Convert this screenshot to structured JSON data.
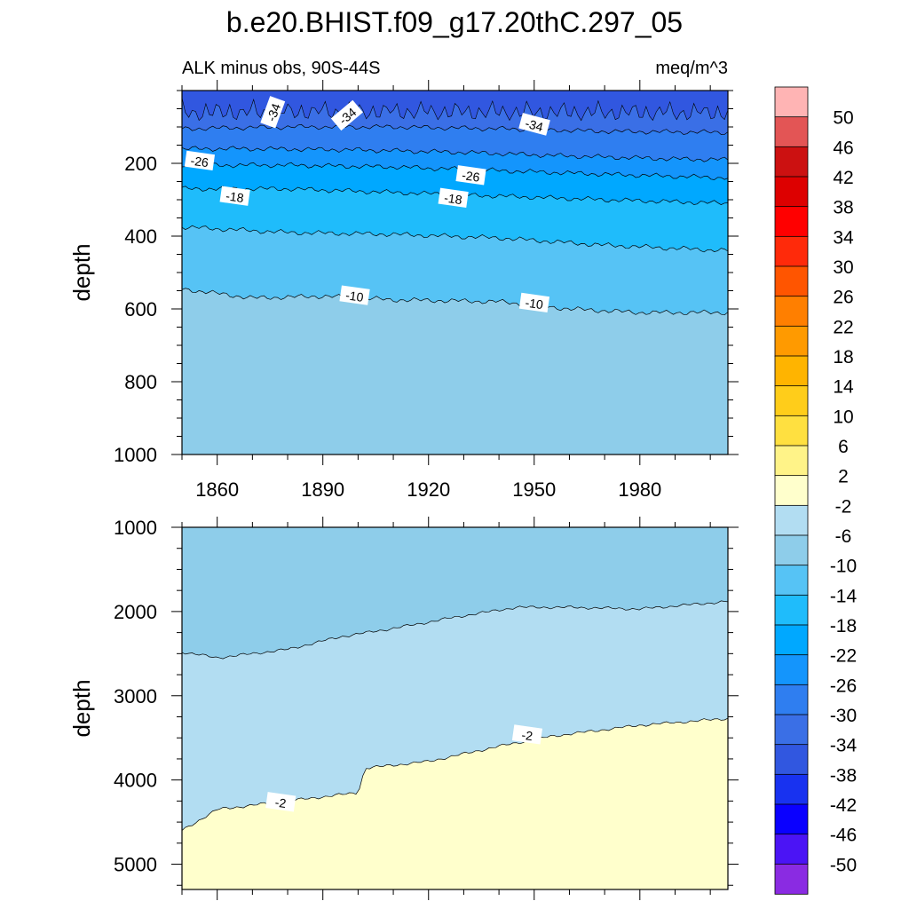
{
  "title": "b.e20.BHIST.f09_g17.20thC.297_05",
  "subtitle_left": "ALK minus obs, 90S-44S",
  "subtitle_right": "meq/m^3",
  "chart_data": [
    {
      "type": "contour",
      "panel": "upper",
      "ylabel": "depth",
      "xlim": [
        1850,
        2005
      ],
      "ylim": [
        1000,
        0
      ],
      "y_reversed": true,
      "x_ticks": [
        1860,
        1890,
        1920,
        1950,
        1980
      ],
      "x_tick_labels": [
        "1860",
        "1890",
        "1920",
        "1950",
        "1980"
      ],
      "y_ticks": [
        200,
        400,
        600,
        800,
        1000
      ],
      "y_tick_labels": [
        "200",
        "400",
        "600",
        "800",
        "1000"
      ],
      "contours": [
        {
          "level": -34,
          "depth": [
            [
              1850,
              20
            ],
            [
              1870,
              18
            ],
            [
              1890,
              17
            ],
            [
              1910,
              17
            ],
            [
              1930,
              18
            ],
            [
              1960,
              19
            ],
            [
              1990,
              20
            ],
            [
              2005,
              20
            ]
          ],
          "label_text": "-34",
          "label_positions": [
            [
              1876,
              60
            ],
            [
              1897,
              70
            ],
            [
              1950,
              95
            ]
          ]
        },
        {
          "level": -30,
          "depth": [
            [
              1850,
              105
            ],
            [
              1880,
              100
            ],
            [
              1910,
              100
            ],
            [
              1940,
              105
            ],
            [
              1970,
              112
            ],
            [
              2005,
              115
            ]
          ],
          "label_text": "",
          "label_positions": []
        },
        {
          "level": -26,
          "depth": [
            [
              1850,
              160
            ],
            [
              1870,
              160
            ],
            [
              1900,
              163
            ],
            [
              1930,
              170
            ],
            [
              1960,
              180
            ],
            [
              1990,
              188
            ],
            [
              2005,
              190
            ]
          ],
          "label_text": "-26",
          "label_positions": [
            [
              1855,
              195
            ],
            [
              1932,
              235
            ]
          ]
        },
        {
          "level": -22,
          "depth": [
            [
              1850,
              205
            ],
            [
              1880,
              205
            ],
            [
              1910,
              210
            ],
            [
              1940,
              220
            ],
            [
              1970,
              230
            ],
            [
              2005,
              240
            ]
          ],
          "label_text": "",
          "label_positions": []
        },
        {
          "level": -18,
          "depth": [
            [
              1850,
              270
            ],
            [
              1880,
              270
            ],
            [
              1910,
              280
            ],
            [
              1940,
              290
            ],
            [
              1970,
              300
            ],
            [
              2005,
              310
            ]
          ],
          "label_text": "-18",
          "label_positions": [
            [
              1865,
              292
            ],
            [
              1927,
              297
            ]
          ]
        },
        {
          "level": -14,
          "depth": [
            [
              1850,
              375
            ],
            [
              1880,
              390
            ],
            [
              1910,
              395
            ],
            [
              1940,
              405
            ],
            [
              1970,
              425
            ],
            [
              2005,
              440
            ]
          ],
          "label_text": "",
          "label_positions": []
        },
        {
          "level": -10,
          "depth": [
            [
              1850,
              545
            ],
            [
              1870,
              570
            ],
            [
              1890,
              565
            ],
            [
              1910,
              575
            ],
            [
              1940,
              580
            ],
            [
              1960,
              600
            ],
            [
              1980,
              610
            ],
            [
              2005,
              610
            ]
          ],
          "label_text": "-10",
          "label_positions": [
            [
              1899,
              565
            ],
            [
              1950,
              585
            ]
          ]
        }
      ],
      "fills_below_deepest": -8
    },
    {
      "type": "contour",
      "panel": "lower",
      "ylabel": "depth",
      "xlim": [
        1850,
        2005
      ],
      "ylim": [
        5300,
        1000
      ],
      "y_reversed": true,
      "x_ticks": [
        1860,
        1890,
        1920,
        1950,
        1980
      ],
      "x_tick_labels": [],
      "y_ticks": [
        1000,
        2000,
        3000,
        4000,
        5000
      ],
      "y_tick_labels": [
        "1000",
        "2000",
        "3000",
        "4000",
        "5000"
      ],
      "contours": [
        {
          "level": -6,
          "depth": [
            [
              1850,
              2480
            ],
            [
              1860,
              2550
            ],
            [
              1880,
              2450
            ],
            [
              1895,
              2300
            ],
            [
              1910,
              2200
            ],
            [
              1930,
              2050
            ],
            [
              1945,
              1950
            ],
            [
              1960,
              1950
            ],
            [
              1980,
              1970
            ],
            [
              2005,
              1880
            ]
          ],
          "label_text": "",
          "label_positions": []
        },
        {
          "level": -2,
          "depth": [
            [
              1850,
              4600
            ],
            [
              1860,
              4350
            ],
            [
              1880,
              4250
            ],
            [
              1900,
              4150
            ],
            [
              1902,
              3860
            ],
            [
              1920,
              3780
            ],
            [
              1940,
              3600
            ],
            [
              1955,
              3480
            ],
            [
              1980,
              3350
            ],
            [
              2005,
              3270
            ]
          ],
          "label_text": "-2",
          "label_positions": [
            [
              1878,
              4270
            ],
            [
              1948,
              3470
            ]
          ]
        }
      ],
      "fills_above_shallowest": -8,
      "fills_middle": -4,
      "fills_below_deepest": 0
    }
  ],
  "colorbar": {
    "labels": [
      "50",
      "46",
      "42",
      "38",
      "34",
      "30",
      "26",
      "22",
      "18",
      "14",
      "10",
      "6",
      "2",
      "-2",
      "-6",
      "-10",
      "-14",
      "-18",
      "-22",
      "-26",
      "-30",
      "-34",
      "-38",
      "-42",
      "-46",
      "-50"
    ],
    "colors": [
      "#ffb4b4",
      "#e35555",
      "#cc1111",
      "#dd0000",
      "#ff0000",
      "#ff2a0a",
      "#ff5500",
      "#ff7f00",
      "#ff9a00",
      "#ffb400",
      "#ffcd1a",
      "#ffe040",
      "#fff388",
      "#ffffcc",
      "#b2ddf2",
      "#8ecdea",
      "#56c3f5",
      "#1fbcfb",
      "#00a8ff",
      "#1495fc",
      "#2f7ef0",
      "#3a6fe6",
      "#3157e0",
      "#1832f0",
      "#0a00ff",
      "#4b14f5",
      "#8a2be2"
    ]
  }
}
